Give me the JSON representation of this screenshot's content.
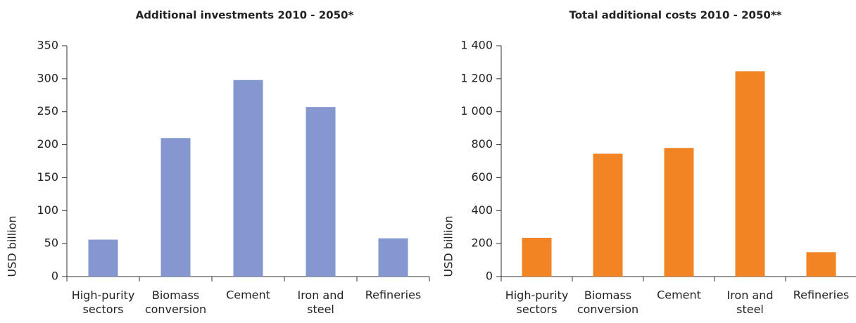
{
  "chart_data": [
    {
      "type": "bar",
      "title": "Additional investments 2010 - 2050*",
      "ylabel": "USD billion",
      "categories": [
        "High-purity\nsectors",
        "Biomass\nconversion",
        "Cement",
        "Iron and\nsteel",
        "Refineries"
      ],
      "values": [
        56,
        210,
        298,
        257,
        58
      ],
      "color": "#8497cf",
      "ylim": [
        0,
        350
      ],
      "yticks": [
        0,
        50,
        100,
        150,
        200,
        250,
        300,
        350
      ]
    },
    {
      "type": "bar",
      "title": "Total additional costs 2010 - 2050**",
      "ylabel": "USD billion",
      "categories": [
        "High-purity\nsectors",
        "Biomass\nconversion",
        "Cement",
        "Iron and\nsteel",
        "Refineries"
      ],
      "values": [
        235,
        745,
        780,
        1245,
        148
      ],
      "color": "#f28424",
      "ylim": [
        0,
        1400
      ],
      "yticks": [
        0,
        200,
        400,
        600,
        800,
        {
          "value": 1000,
          "label": "1 000"
        },
        {
          "value": 1200,
          "label": "1 200"
        },
        {
          "value": 1400,
          "label": "1 400"
        }
      ]
    }
  ]
}
